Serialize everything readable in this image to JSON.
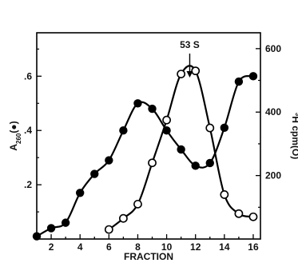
{
  "chart_data": {
    "type": "line",
    "xlabel": "FRACTION",
    "ylabel_left": "A260(●)",
    "ylabel_left_main": "A",
    "ylabel_left_sub": "260",
    "ylabel_left_marker": "(●)",
    "ylabel_right": "3H cpm(O)",
    "ylabel_right_sup": "3",
    "ylabel_right_main": "H cpm(O)",
    "xlim": [
      1,
      16.5
    ],
    "ylim_left": [
      0,
      0.76
    ],
    "ylim_right": [
      0,
      650
    ],
    "x_ticks": [
      2,
      4,
      6,
      8,
      10,
      12,
      14,
      16
    ],
    "x_tick_labels": [
      "2",
      "4",
      "6",
      "8",
      "10",
      "12",
      "14",
      "16"
    ],
    "y_left_ticks": [
      0.2,
      0.4,
      0.6
    ],
    "y_left_tick_labels": [
      ".2",
      ".4",
      ".6"
    ],
    "y_right_ticks": [
      200,
      400,
      600
    ],
    "y_right_tick_labels": [
      "200",
      "400",
      "600"
    ],
    "annotation": {
      "text": "53 S",
      "x": 11.6
    },
    "series": [
      {
        "axis": "left",
        "marker": "filled",
        "x": [
          1,
          2,
          3,
          4,
          5,
          6,
          7,
          8,
          9,
          10,
          11,
          12,
          13,
          14,
          15,
          16
        ],
        "values": [
          0.01,
          0.04,
          0.06,
          0.17,
          0.24,
          0.29,
          0.4,
          0.5,
          0.48,
          0.4,
          0.33,
          0.27,
          0.28,
          0.41,
          0.58,
          0.6
        ]
      },
      {
        "axis": "right",
        "marker": "open",
        "x": [
          6,
          7,
          8,
          9,
          10,
          11,
          12,
          13,
          14,
          15,
          16
        ],
        "values": [
          30,
          65,
          110,
          240,
          375,
          520,
          530,
          350,
          140,
          80,
          70
        ]
      }
    ]
  }
}
